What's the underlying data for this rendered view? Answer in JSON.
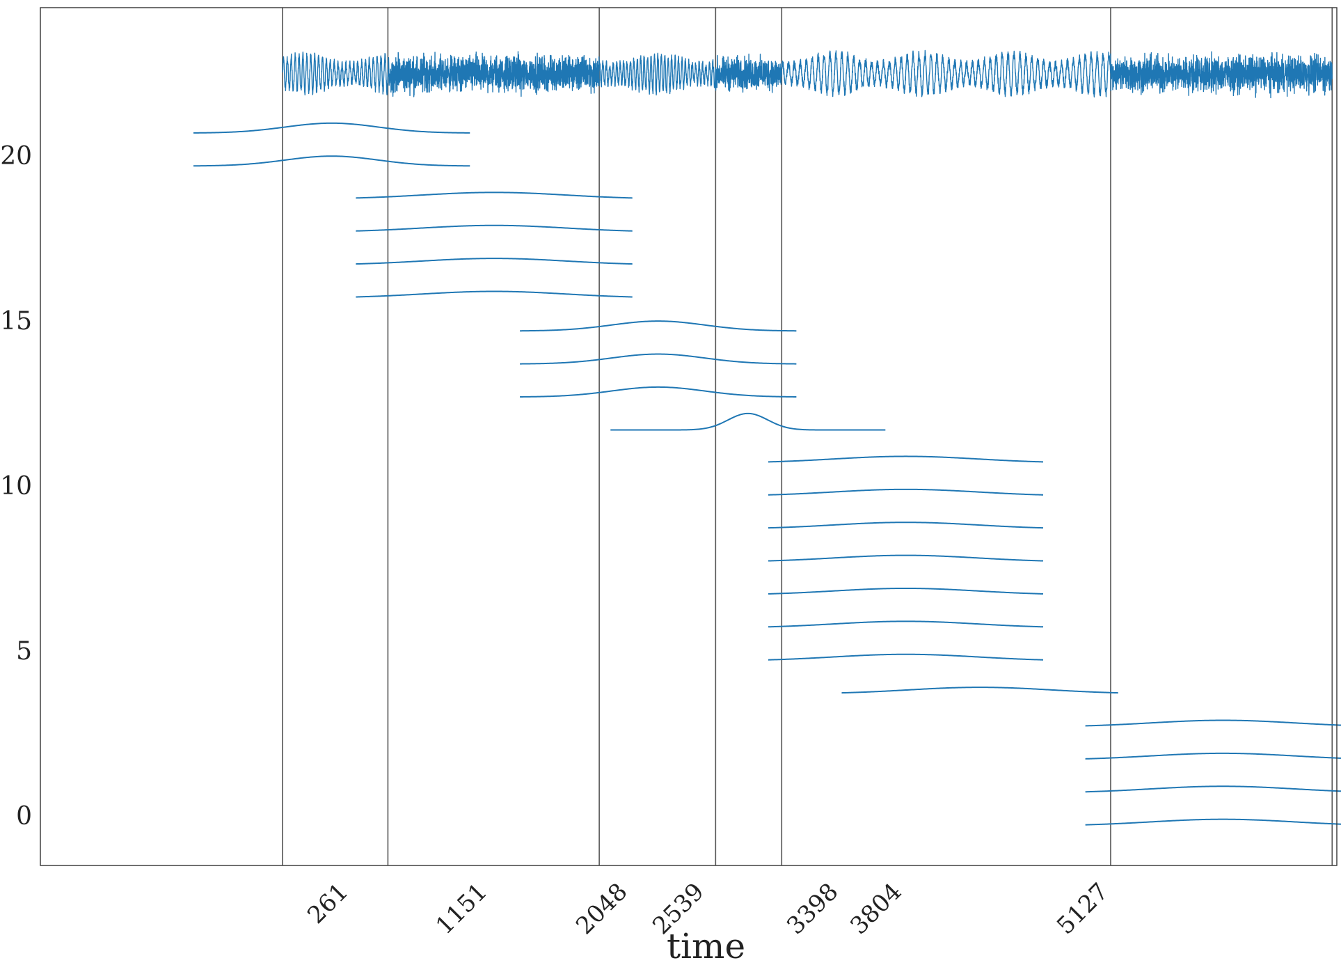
{
  "chart_data": {
    "type": "line",
    "title": "",
    "xlabel": "time",
    "ylabel": "",
    "xlim": [
      -1550,
      6750
    ],
    "ylim": [
      -1.5,
      24.5
    ],
    "yticks": [
      0,
      5,
      10,
      15,
      20
    ],
    "xticks": [
      261,
      1151,
      2048,
      2539,
      3398,
      3804,
      5127
    ],
    "xtick_labels": [
      "261",
      "1151",
      "2048",
      "2539",
      "3398",
      "3804",
      "5127"
    ],
    "vertical_lines": [
      0,
      675,
      2028,
      2773,
      3196,
      5302,
      6720
    ],
    "grid": false,
    "legend": "none",
    "colors": {
      "series": "#1f77b4",
      "vlines": "#555555",
      "frame": "#333333"
    },
    "signal": {
      "name": "",
      "baseline": 22.5,
      "segments": [
        {
          "start": 0,
          "end": 675,
          "style": "oscillation",
          "period": 25,
          "amplitude": 0.55
        },
        {
          "start": 675,
          "end": 2028,
          "style": "noise",
          "amplitude": 0.55
        },
        {
          "start": 2028,
          "end": 2773,
          "style": "oscillation",
          "period": 22,
          "amplitude": 0.55
        },
        {
          "start": 2773,
          "end": 3196,
          "style": "noise",
          "amplitude": 0.5
        },
        {
          "start": 3196,
          "end": 5302,
          "style": "oscillation",
          "period": 38,
          "amplitude": 0.6
        },
        {
          "start": 5302,
          "end": 6720,
          "style": "noise",
          "amplitude": 0.55
        }
      ]
    },
    "bumps": [
      {
        "level": 20.7,
        "start": -570,
        "end": 1200,
        "center": 315,
        "width": 420,
        "height": 0.3
      },
      {
        "level": 19.7,
        "start": -570,
        "end": 1200,
        "center": 315,
        "width": 420,
        "height": 0.3
      },
      {
        "level": 18.7,
        "start": 470,
        "end": 2240,
        "center": 1355,
        "width": 650,
        "height": 0.2
      },
      {
        "level": 17.7,
        "start": 470,
        "end": 2240,
        "center": 1355,
        "width": 650,
        "height": 0.2
      },
      {
        "level": 16.7,
        "start": 470,
        "end": 2240,
        "center": 1355,
        "width": 650,
        "height": 0.2
      },
      {
        "level": 15.7,
        "start": 470,
        "end": 2240,
        "center": 1355,
        "width": 650,
        "height": 0.2
      },
      {
        "level": 14.7,
        "start": 1520,
        "end": 3290,
        "center": 2405,
        "width": 420,
        "height": 0.3
      },
      {
        "level": 13.7,
        "start": 1520,
        "end": 3290,
        "center": 2405,
        "width": 420,
        "height": 0.3
      },
      {
        "level": 12.7,
        "start": 1520,
        "end": 3290,
        "center": 2405,
        "width": 420,
        "height": 0.3
      },
      {
        "level": 11.7,
        "start": 2100,
        "end": 3860,
        "center": 2980,
        "width": 180,
        "height": 0.5
      },
      {
        "level": 10.7,
        "start": 3110,
        "end": 4870,
        "center": 3990,
        "width": 650,
        "height": 0.2
      },
      {
        "level": 9.7,
        "start": 3110,
        "end": 4870,
        "center": 3990,
        "width": 650,
        "height": 0.2
      },
      {
        "level": 8.7,
        "start": 3110,
        "end": 4870,
        "center": 3990,
        "width": 650,
        "height": 0.2
      },
      {
        "level": 7.7,
        "start": 3110,
        "end": 4870,
        "center": 3990,
        "width": 650,
        "height": 0.2
      },
      {
        "level": 6.7,
        "start": 3110,
        "end": 4870,
        "center": 3990,
        "width": 650,
        "height": 0.2
      },
      {
        "level": 5.7,
        "start": 3110,
        "end": 4870,
        "center": 3990,
        "width": 650,
        "height": 0.2
      },
      {
        "level": 4.7,
        "start": 3110,
        "end": 4870,
        "center": 3990,
        "width": 650,
        "height": 0.2
      },
      {
        "level": 3.7,
        "start": 3580,
        "end": 5350,
        "center": 4465,
        "width": 650,
        "height": 0.2
      },
      {
        "level": 2.7,
        "start": 5140,
        "end": 6910,
        "center": 6020,
        "width": 650,
        "height": 0.2
      },
      {
        "level": 1.7,
        "start": 5140,
        "end": 6910,
        "center": 6020,
        "width": 650,
        "height": 0.2
      },
      {
        "level": 0.7,
        "start": 5140,
        "end": 6910,
        "center": 6020,
        "width": 650,
        "height": 0.2
      },
      {
        "level": -0.3,
        "start": 5140,
        "end": 6910,
        "center": 6020,
        "width": 650,
        "height": 0.2
      }
    ]
  }
}
